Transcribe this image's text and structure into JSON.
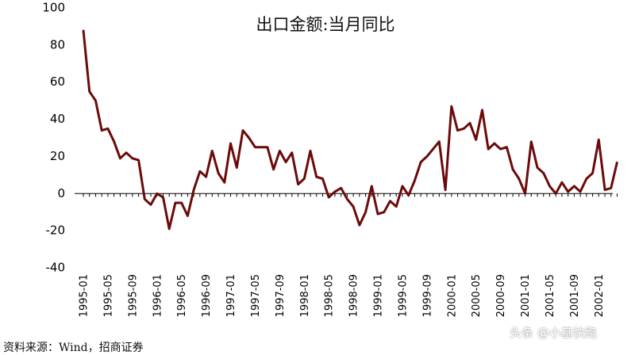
{
  "chart_data": {
    "type": "line",
    "title": "出口金额:当月同比",
    "xlabel": "",
    "ylabel": "",
    "ylim": [
      -40,
      100
    ],
    "yticks": [
      -40,
      -20,
      0,
      20,
      40,
      60,
      80,
      100
    ],
    "grid": false,
    "legend": "none",
    "line_color": "#6b0a0a",
    "x_tick_labels": [
      "1995-01",
      "1995-05",
      "1995-09",
      "1996-01",
      "1996-05",
      "1996-09",
      "1997-01",
      "1997-05",
      "1997-09",
      "1998-01",
      "1998-05",
      "1998-09",
      "1999-01",
      "1999-05",
      "1999-09",
      "2000-01",
      "2000-05",
      "2000-09",
      "2001-01",
      "2001-05",
      "2001-09",
      "2002-01"
    ],
    "x": [
      "1995-01",
      "1995-02",
      "1995-03",
      "1995-04",
      "1995-05",
      "1995-06",
      "1995-07",
      "1995-08",
      "1995-09",
      "1995-10",
      "1995-11",
      "1995-12",
      "1996-01",
      "1996-02",
      "1996-03",
      "1996-04",
      "1996-05",
      "1996-06",
      "1996-07",
      "1996-08",
      "1996-09",
      "1996-10",
      "1996-11",
      "1996-12",
      "1997-01",
      "1997-02",
      "1997-03",
      "1997-04",
      "1997-05",
      "1997-06",
      "1997-07",
      "1997-08",
      "1997-09",
      "1997-10",
      "1997-11",
      "1997-12",
      "1998-01",
      "1998-02",
      "1998-03",
      "1998-04",
      "1998-05",
      "1998-06",
      "1998-07",
      "1998-08",
      "1998-09",
      "1998-10",
      "1998-11",
      "1998-12",
      "1999-01",
      "1999-02",
      "1999-03",
      "1999-04",
      "1999-05",
      "1999-06",
      "1999-07",
      "1999-08",
      "1999-09",
      "1999-10",
      "1999-11",
      "1999-12",
      "2000-01",
      "2000-02",
      "2000-03",
      "2000-04",
      "2000-05",
      "2000-06",
      "2000-07",
      "2000-08",
      "2000-09",
      "2000-10",
      "2000-11",
      "2000-12",
      "2001-01",
      "2001-02",
      "2001-03",
      "2001-04",
      "2001-05",
      "2001-06",
      "2001-07",
      "2001-08",
      "2001-09",
      "2001-10",
      "2001-11",
      "2001-12",
      "2002-01",
      "2002-02",
      "2002-03",
      "2002-04"
    ],
    "series": [
      {
        "values": [
          88,
          55,
          50,
          34,
          35,
          28,
          19,
          22,
          19,
          18,
          -3,
          -6,
          0,
          -2,
          -19,
          -5,
          -5,
          -12,
          2,
          12,
          9,
          23,
          11,
          6,
          27,
          14,
          34,
          30,
          25,
          25,
          25,
          13,
          23,
          17,
          22,
          5,
          8,
          23,
          9,
          8,
          -2,
          1,
          3,
          -3,
          -7,
          -17,
          -10,
          4,
          -11,
          -10,
          -4,
          -7,
          4,
          -1,
          7,
          17,
          20,
          24,
          28,
          2,
          47,
          34,
          35,
          38,
          29,
          45,
          24,
          27,
          24,
          25,
          13,
          8,
          0,
          28,
          14,
          11,
          4,
          0,
          6,
          1,
          4,
          1,
          8,
          11,
          29,
          2,
          3,
          17
        ]
      }
    ]
  },
  "footer": {
    "source": "资料来源：Wind，招商证券",
    "watermark": "头条 @小基快跑"
  }
}
